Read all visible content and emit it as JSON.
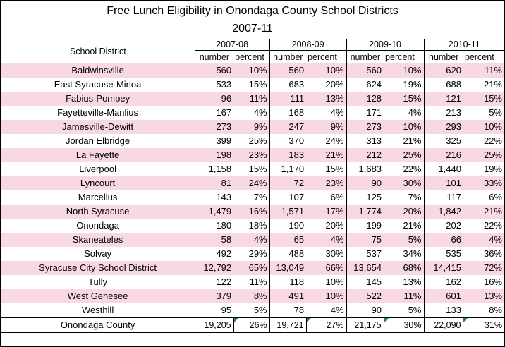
{
  "title": "Free Lunch Eligibility in Onondaga County School Districts",
  "subtitle": "2007-11",
  "header": {
    "district_label": "School District",
    "years": [
      "2007-08",
      "2008-09",
      "2009-10",
      "2010-11"
    ],
    "number_label": "number",
    "percent_label": "percent"
  },
  "rows": [
    {
      "district": "Baldwinsville",
      "values": [
        "560",
        "10%",
        "560",
        "10%",
        "560",
        "10%",
        "620",
        "11%"
      ]
    },
    {
      "district": "East Syracuse-Minoa",
      "values": [
        "533",
        "15%",
        "683",
        "20%",
        "624",
        "19%",
        "688",
        "21%"
      ]
    },
    {
      "district": "Fabius-Pompey",
      "values": [
        "96",
        "11%",
        "111",
        "13%",
        "128",
        "15%",
        "121",
        "15%"
      ]
    },
    {
      "district": "Fayetteville-Manlius",
      "values": [
        "167",
        "4%",
        "168",
        "4%",
        "171",
        "4%",
        "213",
        "5%"
      ]
    },
    {
      "district": "Jamesville-Dewitt",
      "values": [
        "273",
        "9%",
        "247",
        "9%",
        "273",
        "10%",
        "293",
        "10%"
      ]
    },
    {
      "district": "Jordan Elbridge",
      "values": [
        "399",
        "25%",
        "370",
        "24%",
        "313",
        "21%",
        "325",
        "22%"
      ]
    },
    {
      "district": "La Fayette",
      "values": [
        "198",
        "23%",
        "183",
        "21%",
        "212",
        "25%",
        "216",
        "25%"
      ]
    },
    {
      "district": "Liverpool",
      "values": [
        "1,158",
        "15%",
        "1,170",
        "15%",
        "1,683",
        "22%",
        "1,440",
        "19%"
      ]
    },
    {
      "district": "Lyncourt",
      "values": [
        "81",
        "24%",
        "72",
        "23%",
        "90",
        "30%",
        "101",
        "33%"
      ]
    },
    {
      "district": "Marcellus",
      "values": [
        "143",
        "7%",
        "107",
        "6%",
        "125",
        "7%",
        "117",
        "6%"
      ]
    },
    {
      "district": "North Syracuse",
      "values": [
        "1,479",
        "16%",
        "1,571",
        "17%",
        "1,774",
        "20%",
        "1,842",
        "21%"
      ]
    },
    {
      "district": "Onondaga",
      "values": [
        "180",
        "18%",
        "190",
        "20%",
        "199",
        "21%",
        "202",
        "22%"
      ]
    },
    {
      "district": "Skaneateles",
      "values": [
        "58",
        "4%",
        "65",
        "4%",
        "75",
        "5%",
        "66",
        "4%"
      ]
    },
    {
      "district": "Solvay",
      "values": [
        "492",
        "29%",
        "488",
        "30%",
        "537",
        "34%",
        "535",
        "36%"
      ]
    },
    {
      "district": "Syracuse City School District",
      "values": [
        "12,792",
        "65%",
        "13,049",
        "66%",
        "13,654",
        "68%",
        "14,415",
        "72%"
      ]
    },
    {
      "district": "Tully",
      "values": [
        "122",
        "11%",
        "118",
        "10%",
        "145",
        "13%",
        "162",
        "16%"
      ]
    },
    {
      "district": "West Genesee",
      "values": [
        "379",
        "8%",
        "491",
        "10%",
        "522",
        "11%",
        "601",
        "13%"
      ]
    },
    {
      "district": "Westhill",
      "values": [
        "95",
        "5%",
        "78",
        "4%",
        "90",
        "5%",
        "133",
        "8%"
      ]
    }
  ],
  "total": {
    "district": "Onondaga County",
    "values": [
      "19,205",
      "26%",
      "19,721",
      "27%",
      "21,175",
      "30%",
      "22,090",
      "31%"
    ]
  },
  "colors": {
    "stripe": "#f9d8e6",
    "flag": "#1e8a3a"
  }
}
